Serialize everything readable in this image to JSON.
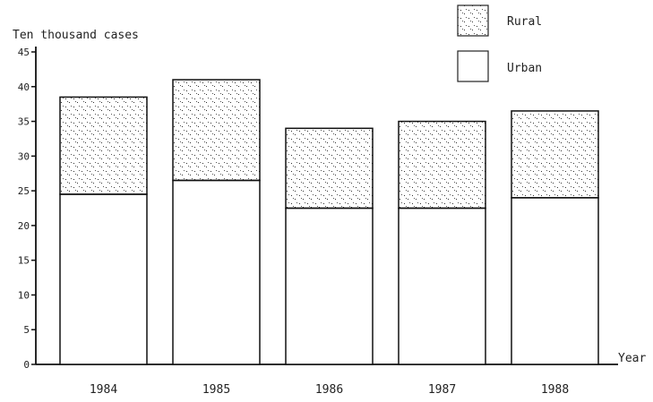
{
  "chart_data": {
    "type": "bar",
    "stacked": true,
    "ylabel": "Ten thousand cases",
    "xlabel": "Year",
    "ylim": [
      0,
      45
    ],
    "yticks": [
      "0",
      "5",
      "10",
      "15",
      "20",
      "25",
      "30",
      "35",
      "40",
      "45"
    ],
    "categories": [
      "1984",
      "1985",
      "1986",
      "1987",
      "1988"
    ],
    "series": [
      {
        "name": "Urban",
        "values": [
          24.5,
          26.5,
          22.5,
          22.5,
          24.0
        ]
      },
      {
        "name": "Rural",
        "values": [
          14.0,
          14.5,
          11.5,
          12.5,
          12.5
        ]
      }
    ],
    "legend_position": "top-right",
    "grid": false
  }
}
